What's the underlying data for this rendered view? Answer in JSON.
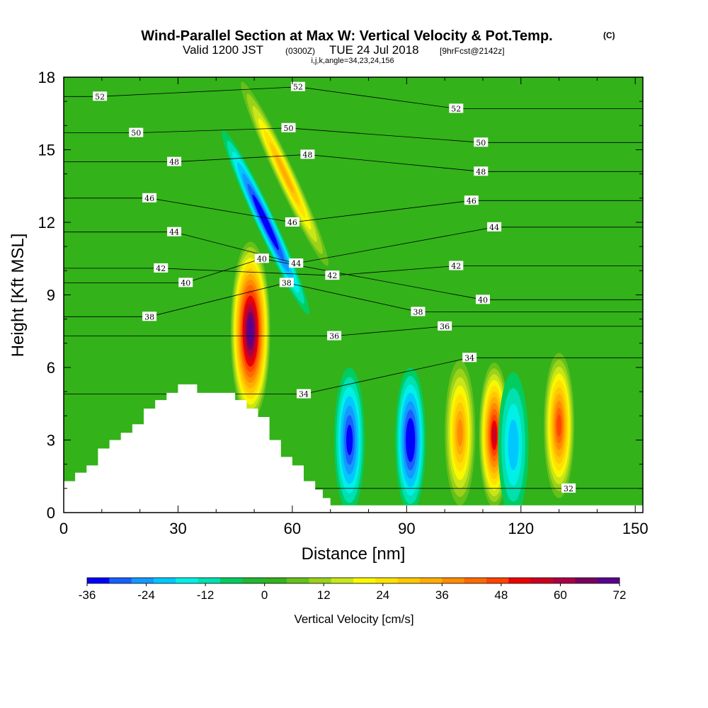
{
  "header": {
    "title_main": "Wind-Parallel Section at Max W: Vertical Velocity & Pot.Temp.",
    "title_units": "(C)",
    "sub_valid": "Valid 1200 JST",
    "sub_z": "(0300Z)",
    "sub_date": "TUE 24 Jul 2018",
    "sub_fcst": "[9hrFcst@2142z]",
    "sub_indices": "i,j,k,angle=34,23,24,156"
  },
  "chart_data": {
    "type": "heatmap",
    "title": "Wind-Parallel Section at Max W: Vertical Velocity & Pot.Temp.",
    "xlabel": "Distance [nm]",
    "ylabel": "Height [Kft MSL]",
    "xlim": [
      0,
      152
    ],
    "ylim": [
      0,
      18
    ],
    "x_ticks": [
      "0",
      "30",
      "60",
      "90",
      "120",
      "150"
    ],
    "y_ticks": [
      "0",
      "3",
      "6",
      "9",
      "12",
      "15",
      "18"
    ],
    "colorbar": {
      "title": "Vertical Velocity [cm/s]",
      "range": [
        -36,
        72
      ],
      "tick_labels": [
        "-36",
        "-24",
        "-12",
        "0",
        "12",
        "24",
        "36",
        "48",
        "60",
        "72"
      ],
      "colors": [
        "#0000ff",
        "#1760ff",
        "#1499ff",
        "#00c8ff",
        "#00f0e6",
        "#00e0b0",
        "#00cc60",
        "#22b830",
        "#33b21a",
        "#66c01a",
        "#9ad21a",
        "#c8e618",
        "#f8f800",
        "#ffe100",
        "#ffc800",
        "#ffad00",
        "#ff8c00",
        "#ff6a00",
        "#ff4400",
        "#ee0000",
        "#cc0022",
        "#aa0044",
        "#7a0060",
        "#5a0090"
      ]
    },
    "vertical_velocity_features": [
      {
        "x": 49,
        "z": 7.5,
        "w": 72
      },
      {
        "x": 53,
        "z": 12,
        "w": -36
      },
      {
        "x": 58,
        "z": 14,
        "w": 28
      },
      {
        "x": 75,
        "z": 3.0,
        "w": -30
      },
      {
        "x": 91,
        "z": 3.0,
        "w": -32
      },
      {
        "x": 104,
        "z": 3.3,
        "w": 32
      },
      {
        "x": 113,
        "z": 3.2,
        "w": 54
      },
      {
        "x": 118,
        "z": 2.8,
        "w": -14
      },
      {
        "x": 130,
        "z": 3.6,
        "w": 44
      }
    ],
    "theta_contour_labels": [
      {
        "text": "52",
        "x": 9.5,
        "z": 17.2
      },
      {
        "text": "50",
        "x": 19,
        "z": 15.7
      },
      {
        "text": "48",
        "x": 29,
        "z": 14.5
      },
      {
        "text": "46",
        "x": 22.5,
        "z": 13.0
      },
      {
        "text": "44",
        "x": 29,
        "z": 11.6
      },
      {
        "text": "42",
        "x": 25.5,
        "z": 10.1
      },
      {
        "text": "40",
        "x": 32,
        "z": 9.5
      },
      {
        "text": "38",
        "x": 22.5,
        "z": 8.1
      },
      {
        "text": "40",
        "x": 52,
        "z": 10.5
      },
      {
        "text": "38",
        "x": 58.5,
        "z": 9.5
      },
      {
        "text": "44",
        "x": 61,
        "z": 10.3
      },
      {
        "text": "46",
        "x": 60,
        "z": 12.0
      },
      {
        "text": "48",
        "x": 64,
        "z": 14.8
      },
      {
        "text": "50",
        "x": 59,
        "z": 15.9
      },
      {
        "text": "52",
        "x": 61.5,
        "z": 17.6
      },
      {
        "text": "42",
        "x": 70.5,
        "z": 9.8
      },
      {
        "text": "36",
        "x": 71,
        "z": 7.3
      },
      {
        "text": "34",
        "x": 63,
        "z": 4.9
      },
      {
        "text": "52",
        "x": 103,
        "z": 16.7
      },
      {
        "text": "50",
        "x": 109.5,
        "z": 15.3
      },
      {
        "text": "48",
        "x": 109.5,
        "z": 14.1
      },
      {
        "text": "46",
        "x": 107,
        "z": 12.9
      },
      {
        "text": "44",
        "x": 113,
        "z": 11.8
      },
      {
        "text": "42",
        "x": 103,
        "z": 10.2
      },
      {
        "text": "40",
        "x": 110,
        "z": 8.8
      },
      {
        "text": "38",
        "x": 93,
        "z": 8.3
      },
      {
        "text": "36",
        "x": 100,
        "z": 7.7
      },
      {
        "text": "34",
        "x": 106.5,
        "z": 6.4
      },
      {
        "text": "32",
        "x": 132.5,
        "z": 1.0
      }
    ],
    "terrain": [
      [
        0,
        1.3
      ],
      [
        3,
        1.3
      ],
      [
        3,
        1.65
      ],
      [
        6,
        1.65
      ],
      [
        6,
        1.95
      ],
      [
        9,
        1.95
      ],
      [
        9,
        2.65
      ],
      [
        12,
        2.65
      ],
      [
        12,
        3.0
      ],
      [
        15,
        3.0
      ],
      [
        15,
        3.3
      ],
      [
        18,
        3.3
      ],
      [
        18,
        3.65
      ],
      [
        21,
        3.65
      ],
      [
        21,
        4.3
      ],
      [
        24,
        4.3
      ],
      [
        24,
        4.65
      ],
      [
        27,
        4.65
      ],
      [
        27,
        4.95
      ],
      [
        30,
        4.95
      ],
      [
        30,
        5.3
      ],
      [
        35,
        5.3
      ],
      [
        35,
        4.95
      ],
      [
        45,
        4.95
      ],
      [
        45,
        4.65
      ],
      [
        48,
        4.65
      ],
      [
        48,
        4.3
      ],
      [
        51,
        4.3
      ],
      [
        51,
        3.95
      ],
      [
        54,
        3.95
      ],
      [
        54,
        3.0
      ],
      [
        57,
        3.0
      ],
      [
        57,
        2.3
      ],
      [
        60,
        2.3
      ],
      [
        60,
        1.95
      ],
      [
        63,
        1.95
      ],
      [
        63,
        1.3
      ],
      [
        66,
        1.3
      ],
      [
        66,
        0.95
      ],
      [
        68,
        0.95
      ],
      [
        68,
        0.6
      ],
      [
        70,
        0.6
      ],
      [
        70,
        0.3
      ],
      [
        152,
        0.3
      ]
    ]
  }
}
